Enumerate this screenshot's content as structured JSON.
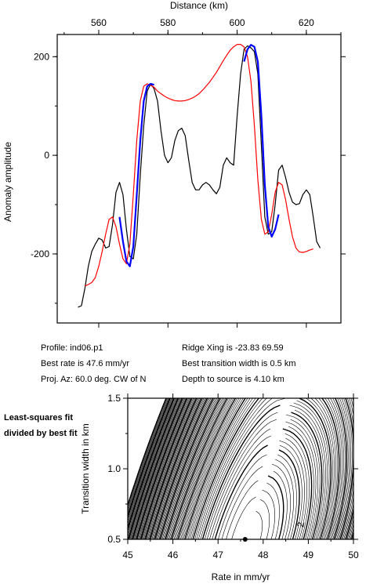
{
  "chart_data": [
    {
      "type": "line",
      "title": "",
      "xlabel": "Distance (km)",
      "ylabel": "Anomaly amplitude",
      "xlim": [
        548,
        630
      ],
      "ylim": [
        -340,
        245
      ],
      "xticks": [
        "560",
        "580",
        "600",
        "620"
      ],
      "yticks": [
        "200",
        "0",
        "-200"
      ],
      "grid": false,
      "series": [
        {
          "color": "#000000",
          "points": [
            [
              554,
              -308
            ],
            [
              555,
              -305
            ],
            [
              556,
              -270
            ],
            [
              557,
              -225
            ],
            [
              558,
              -195
            ],
            [
              559,
              -180
            ],
            [
              560,
              -168
            ],
            [
              561,
              -172
            ],
            [
              562,
              -188
            ],
            [
              563,
              -185
            ],
            [
              564,
              -140
            ],
            [
              565,
              -75
            ],
            [
              566,
              -55
            ],
            [
              567,
              -80
            ],
            [
              568,
              -150
            ],
            [
              569,
              -205
            ],
            [
              570,
              -210
            ],
            [
              571,
              -160
            ],
            [
              572,
              -40
            ],
            [
              573,
              60
            ],
            [
              574,
              130
            ],
            [
              575,
              145
            ],
            [
              576,
              135
            ],
            [
              577,
              110
            ],
            [
              578,
              50
            ],
            [
              579,
              0
            ],
            [
              580,
              -15
            ],
            [
              581,
              -5
            ],
            [
              582,
              30
            ],
            [
              583,
              50
            ],
            [
              584,
              55
            ],
            [
              585,
              40
            ],
            [
              586,
              -10
            ],
            [
              587,
              -55
            ],
            [
              588,
              -70
            ],
            [
              589,
              -70
            ],
            [
              590,
              -60
            ],
            [
              591,
              -55
            ],
            [
              592,
              -60
            ],
            [
              593,
              -70
            ],
            [
              594,
              -78
            ],
            [
              595,
              -65
            ],
            [
              596,
              -20
            ],
            [
              597,
              -5
            ],
            [
              598,
              -15
            ],
            [
              599,
              -20
            ],
            [
              600,
              80
            ],
            [
              601,
              165
            ],
            [
              602,
              215
            ],
            [
              603,
              222
            ],
            [
              604,
              218
            ],
            [
              605,
              210
            ],
            [
              606,
              165
            ],
            [
              607,
              20
            ],
            [
              608,
              -125
            ],
            [
              609,
              -160
            ],
            [
              610,
              -155
            ],
            [
              611,
              -100
            ],
            [
              612,
              -30
            ],
            [
              613,
              -20
            ],
            [
              614,
              -45
            ],
            [
              615,
              -75
            ],
            [
              616,
              -95
            ],
            [
              617,
              -100
            ],
            [
              618,
              -98
            ],
            [
              619,
              -80
            ],
            [
              620,
              -70
            ],
            [
              621,
              -80
            ],
            [
              622,
              -125
            ],
            [
              623,
              -175
            ],
            [
              624,
              -188
            ]
          ]
        },
        {
          "color": "#ff0000",
          "points": [
            [
              556,
              -265
            ],
            [
              557,
              -262
            ],
            [
              558,
              -258
            ],
            [
              559,
              -248
            ],
            [
              560,
              -225
            ],
            [
              561,
              -195
            ],
            [
              562,
              -160
            ],
            [
              563,
              -130
            ],
            [
              564,
              -125
            ],
            [
              565,
              -145
            ],
            [
              566,
              -180
            ],
            [
              567,
              -210
            ],
            [
              568,
              -220
            ],
            [
              569,
              -180
            ],
            [
              570,
              -80
            ],
            [
              571,
              30
            ],
            [
              572,
              110
            ],
            [
              573,
              140
            ],
            [
              574,
              145
            ],
            [
              575,
              142
            ],
            [
              576,
              138
            ],
            [
              577,
              130
            ],
            [
              578,
              125
            ],
            [
              579,
              120
            ],
            [
              580,
              116
            ],
            [
              581,
              113
            ],
            [
              582,
              111
            ],
            [
              583,
              110
            ],
            [
              584,
              110
            ],
            [
              585,
              111
            ],
            [
              586,
              113
            ],
            [
              587,
              116
            ],
            [
              588,
              120
            ],
            [
              589,
              125
            ],
            [
              590,
              132
            ],
            [
              591,
              140
            ],
            [
              592,
              148
            ],
            [
              593,
              158
            ],
            [
              594,
              168
            ],
            [
              595,
              180
            ],
            [
              596,
              192
            ],
            [
              597,
              203
            ],
            [
              598,
              213
            ],
            [
              599,
              220
            ],
            [
              600,
              225
            ],
            [
              601,
              225
            ],
            [
              602,
              220
            ],
            [
              603,
              200
            ],
            [
              604,
              150
            ],
            [
              605,
              60
            ],
            [
              606,
              -50
            ],
            [
              607,
              -130
            ],
            [
              608,
              -160
            ],
            [
              609,
              -155
            ],
            [
              610,
              -120
            ],
            [
              611,
              -75
            ],
            [
              612,
              -55
            ],
            [
              613,
              -60
            ],
            [
              614,
              -90
            ],
            [
              615,
              -130
            ],
            [
              616,
              -165
            ],
            [
              617,
              -188
            ],
            [
              618,
              -196
            ],
            [
              619,
              -197
            ],
            [
              620,
              -195
            ],
            [
              621,
              -192
            ],
            [
              622,
              -190
            ]
          ]
        },
        {
          "color": "#0000ff",
          "points": [
            [
              566,
              -125
            ],
            [
              567,
              -175
            ],
            [
              568,
              -215
            ],
            [
              569,
              -225
            ],
            [
              570,
              -185
            ],
            [
              571,
              -80
            ],
            [
              572,
              30
            ],
            [
              573,
              110
            ],
            [
              574,
              140
            ],
            [
              575,
              145
            ],
            [
              576,
              143
            ]
          ]
        },
        {
          "color": "#0000ff",
          "points": [
            [
              602,
              190
            ],
            [
              603,
              215
            ],
            [
              604,
              224
            ],
            [
              605,
              220
            ],
            [
              606,
              190
            ],
            [
              607,
              80
            ],
            [
              608,
              -60
            ],
            [
              609,
              -145
            ],
            [
              610,
              -165
            ],
            [
              611,
              -150
            ],
            [
              612,
              -120
            ]
          ]
        }
      ]
    },
    {
      "type": "heatmap",
      "title": "",
      "xlabel": "Rate in mm/yr",
      "ylabel": "Transition width in km",
      "xlim": [
        45,
        50
      ],
      "ylim": [
        0.5,
        1.5
      ],
      "xticks": [
        "45",
        "46",
        "47",
        "48",
        "49",
        "50"
      ],
      "yticks": [
        "0.5",
        "1.0",
        "1.5"
      ],
      "contour_label": "2",
      "best_fit_point": [
        47.6,
        0.5
      ]
    }
  ],
  "info": {
    "profile": "Profile: ind06.p1",
    "best_rate": "Best rate is 47.6 mm/yr",
    "proj_az": "Proj. Az: 60.0 deg. CW of N",
    "ridge_xing": "Ridge Xing is -23.83 69.59",
    "best_width": "Best transition width is 0.5 km",
    "depth": "Depth to source is   4.10 km"
  },
  "note": "Least-squares fit divided by best fit"
}
